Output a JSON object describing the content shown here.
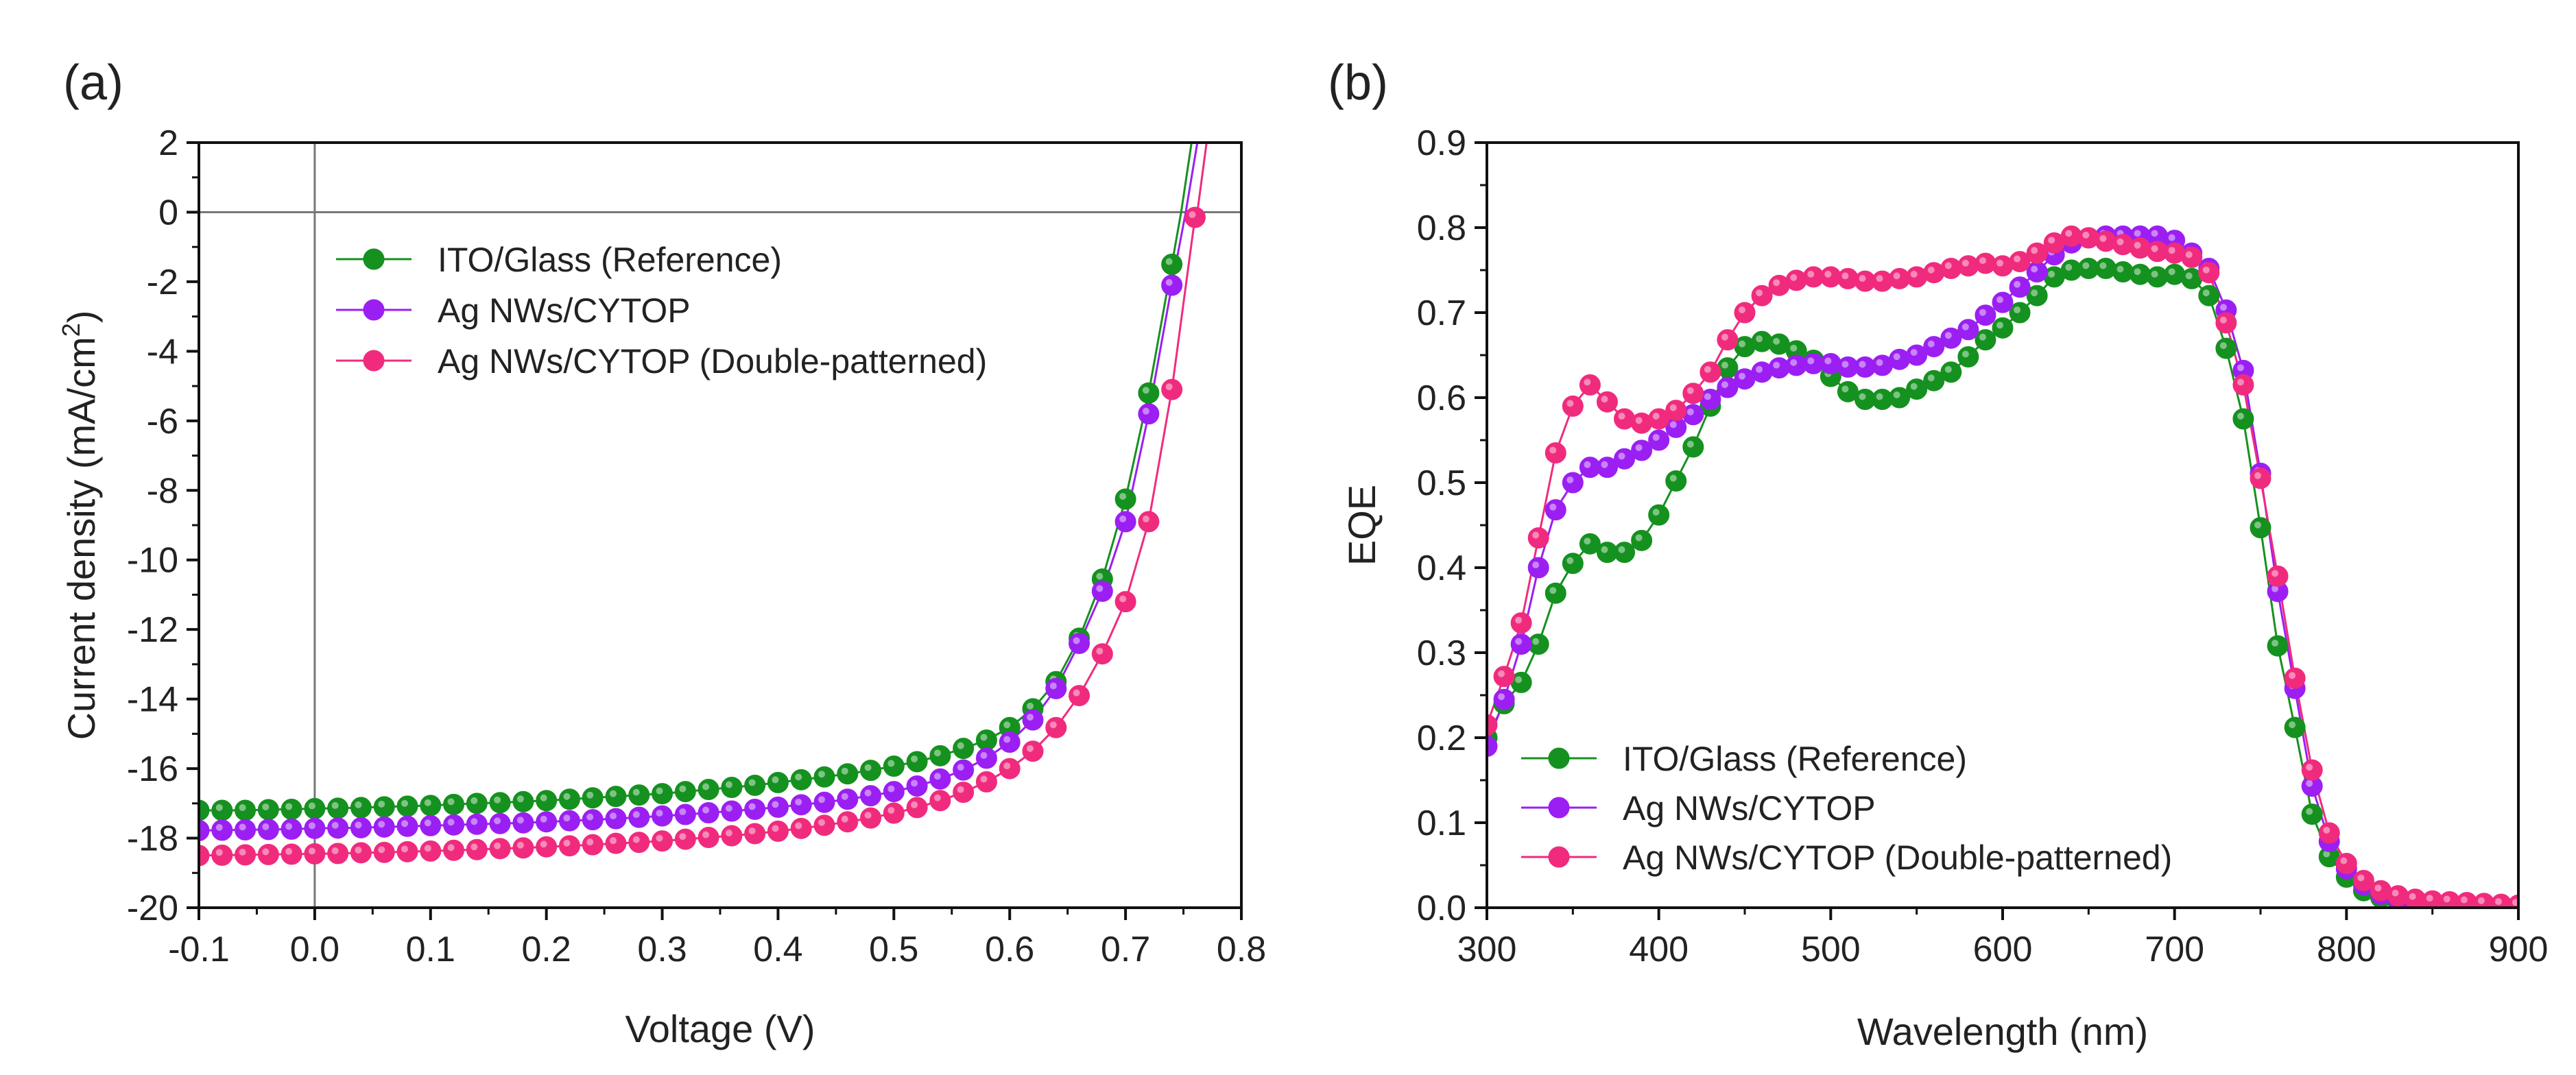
{
  "colors": {
    "reference": "#15911f",
    "agnws": "#9b1ff2",
    "double": "#f02b7d"
  },
  "chart_data": [
    {
      "type": "line",
      "panel_label": "(a)",
      "xlabel": "Voltage (V)",
      "ylabel_main": "Current density (mA/cm",
      "ylabel_sup": "2",
      "ylabel_end": ")",
      "xlim": [
        -0.1,
        0.8
      ],
      "ylim": [
        -20,
        2
      ],
      "xticks": [
        "-0.1",
        "0.0",
        "0.1",
        "0.2",
        "0.3",
        "0.4",
        "0.5",
        "0.6",
        "0.7",
        "0.8"
      ],
      "yticks": [
        "2",
        "0",
        "-2",
        "-4",
        "-6",
        "-8",
        "-10",
        "-12",
        "-14",
        "-16",
        "-18",
        "-20"
      ],
      "legend": [
        "ITO/Glass (Reference)",
        "Ag NWs/CYTOP",
        "Ag NWs/CYTOP (Double-patterned)"
      ],
      "series": [
        {
          "name": "ITO/Glass (Reference)",
          "color": "#15911f",
          "x": [
            -0.1,
            -0.08,
            -0.06,
            -0.04,
            -0.02,
            0.0,
            0.02,
            0.04,
            0.06,
            0.08,
            0.1,
            0.12,
            0.14,
            0.16,
            0.18,
            0.2,
            0.22,
            0.24,
            0.26,
            0.28,
            0.3,
            0.32,
            0.34,
            0.36,
            0.38,
            0.4,
            0.42,
            0.44,
            0.46,
            0.48,
            0.5,
            0.52,
            0.54,
            0.56,
            0.58,
            0.6,
            0.62,
            0.64,
            0.66,
            0.68,
            0.7,
            0.72,
            0.74
          ],
          "y": [
            -17.2,
            -17.2,
            -17.2,
            -17.18,
            -17.17,
            -17.15,
            -17.14,
            -17.12,
            -17.1,
            -17.08,
            -17.06,
            -17.03,
            -17.0,
            -16.98,
            -16.95,
            -16.92,
            -16.88,
            -16.84,
            -16.8,
            -16.76,
            -16.72,
            -16.66,
            -16.6,
            -16.54,
            -16.48,
            -16.4,
            -16.32,
            -16.24,
            -16.15,
            -16.05,
            -15.93,
            -15.8,
            -15.63,
            -15.42,
            -15.18,
            -14.82,
            -14.28,
            -13.5,
            -12.25,
            -10.55,
            -8.25,
            -5.2,
            -1.5
          ],
          "fit_x": [
            0.748,
            0.757
          ],
          "fit_y": [
            0.0,
            2.0
          ]
        },
        {
          "name": "Ag NWs/CYTOP",
          "color": "#9b1ff2",
          "x": [
            -0.1,
            -0.08,
            -0.06,
            -0.04,
            -0.02,
            0.0,
            0.02,
            0.04,
            0.06,
            0.08,
            0.1,
            0.12,
            0.14,
            0.16,
            0.18,
            0.2,
            0.22,
            0.24,
            0.26,
            0.28,
            0.3,
            0.32,
            0.34,
            0.36,
            0.38,
            0.4,
            0.42,
            0.44,
            0.46,
            0.48,
            0.5,
            0.52,
            0.54,
            0.56,
            0.58,
            0.6,
            0.62,
            0.64,
            0.66,
            0.68,
            0.7,
            0.72,
            0.74
          ],
          "y": [
            -17.78,
            -17.77,
            -17.76,
            -17.75,
            -17.74,
            -17.72,
            -17.71,
            -17.7,
            -17.68,
            -17.66,
            -17.64,
            -17.62,
            -17.6,
            -17.58,
            -17.56,
            -17.53,
            -17.5,
            -17.47,
            -17.44,
            -17.4,
            -17.36,
            -17.32,
            -17.27,
            -17.22,
            -17.17,
            -17.11,
            -17.04,
            -16.97,
            -16.88,
            -16.78,
            -16.66,
            -16.5,
            -16.3,
            -16.04,
            -15.7,
            -15.24,
            -14.6,
            -13.7,
            -12.4,
            -10.9,
            -8.9,
            -5.8,
            -2.1
          ],
          "fit_x": [
            0.752,
            0.762
          ],
          "fit_y": [
            0.0,
            2.0
          ]
        },
        {
          "name": "Ag NWs/CYTOP (Double-patterned)",
          "color": "#f02b7d",
          "x": [
            -0.1,
            -0.08,
            -0.06,
            -0.04,
            -0.02,
            0.0,
            0.02,
            0.04,
            0.06,
            0.08,
            0.1,
            0.12,
            0.14,
            0.16,
            0.18,
            0.2,
            0.22,
            0.24,
            0.26,
            0.28,
            0.3,
            0.32,
            0.34,
            0.36,
            0.38,
            0.4,
            0.42,
            0.44,
            0.46,
            0.48,
            0.5,
            0.52,
            0.54,
            0.56,
            0.58,
            0.6,
            0.62,
            0.64,
            0.66,
            0.68,
            0.7,
            0.72,
            0.74,
            0.76
          ],
          "y": [
            -18.5,
            -18.49,
            -18.48,
            -18.47,
            -18.46,
            -18.45,
            -18.44,
            -18.42,
            -18.41,
            -18.39,
            -18.37,
            -18.35,
            -18.33,
            -18.3,
            -18.28,
            -18.25,
            -18.22,
            -18.19,
            -18.15,
            -18.12,
            -18.08,
            -18.03,
            -17.98,
            -17.93,
            -17.87,
            -17.8,
            -17.72,
            -17.63,
            -17.53,
            -17.42,
            -17.28,
            -17.12,
            -16.92,
            -16.68,
            -16.38,
            -16.0,
            -15.5,
            -14.82,
            -13.9,
            -12.7,
            -11.2,
            -8.9,
            -5.1,
            -0.15
          ],
          "fit_x": [
            0.762,
            0.77
          ],
          "fit_y": [
            0.0,
            2.0
          ]
        }
      ]
    },
    {
      "type": "line",
      "panel_label": "(b)",
      "xlabel": "Wavelength (nm)",
      "ylabel": "EQE",
      "xlim": [
        300,
        900
      ],
      "ylim": [
        0.0,
        0.9
      ],
      "xticks": [
        "300",
        "400",
        "500",
        "600",
        "700",
        "800",
        "900"
      ],
      "yticks": [
        "0.9",
        "0.8",
        "0.7",
        "0.6",
        "0.5",
        "0.4",
        "0.3",
        "0.2",
        "0.1",
        "0.0"
      ],
      "legend": [
        "ITO/Glass (Reference)",
        "Ag NWs/CYTOP",
        "Ag NWs/CYTOP (Double-patterned)"
      ],
      "series": [
        {
          "name": "ITO/Glass (Reference)",
          "color": "#15911f",
          "x": [
            300,
            310,
            320,
            330,
            340,
            350,
            360,
            370,
            380,
            390,
            400,
            410,
            420,
            430,
            440,
            450,
            460,
            470,
            480,
            490,
            500,
            510,
            520,
            530,
            540,
            550,
            560,
            570,
            580,
            590,
            600,
            610,
            620,
            630,
            640,
            650,
            660,
            670,
            680,
            690,
            700,
            710,
            720,
            730,
            740,
            750,
            760,
            770,
            780,
            790,
            800,
            810,
            820,
            830,
            840,
            850,
            860,
            870,
            880,
            890,
            900
          ],
          "y": [
            0.2,
            0.24,
            0.265,
            0.31,
            0.37,
            0.405,
            0.428,
            0.418,
            0.418,
            0.432,
            0.462,
            0.502,
            0.542,
            0.59,
            0.635,
            0.66,
            0.666,
            0.663,
            0.655,
            0.644,
            0.625,
            0.607,
            0.598,
            0.598,
            0.6,
            0.61,
            0.62,
            0.63,
            0.648,
            0.668,
            0.682,
            0.7,
            0.72,
            0.742,
            0.75,
            0.752,
            0.752,
            0.748,
            0.745,
            0.742,
            0.745,
            0.74,
            0.72,
            0.658,
            0.575,
            0.447,
            0.308,
            0.212,
            0.11,
            0.06,
            0.036,
            0.02,
            0.012,
            0.007,
            0.004,
            0.003,
            0.002,
            0.002,
            0.001,
            0.001,
            0.001
          ]
        },
        {
          "name": "Ag NWs/CYTOP",
          "color": "#9b1ff2",
          "x": [
            300,
            310,
            320,
            330,
            340,
            350,
            360,
            370,
            380,
            390,
            400,
            410,
            420,
            430,
            440,
            450,
            460,
            470,
            480,
            490,
            500,
            510,
            520,
            530,
            540,
            550,
            560,
            570,
            580,
            590,
            600,
            610,
            620,
            630,
            640,
            650,
            660,
            670,
            680,
            690,
            700,
            710,
            720,
            730,
            740,
            750,
            760,
            770,
            780,
            790,
            800,
            810,
            820,
            830,
            840,
            850,
            860,
            870,
            880,
            890,
            900
          ],
          "y": [
            0.19,
            0.245,
            0.31,
            0.4,
            0.468,
            0.5,
            0.518,
            0.518,
            0.528,
            0.538,
            0.55,
            0.565,
            0.58,
            0.598,
            0.612,
            0.622,
            0.63,
            0.635,
            0.638,
            0.64,
            0.64,
            0.636,
            0.636,
            0.638,
            0.645,
            0.65,
            0.66,
            0.67,
            0.68,
            0.697,
            0.712,
            0.73,
            0.748,
            0.768,
            0.782,
            0.788,
            0.79,
            0.79,
            0.79,
            0.79,
            0.785,
            0.77,
            0.752,
            0.703,
            0.632,
            0.511,
            0.372,
            0.258,
            0.143,
            0.078,
            0.046,
            0.027,
            0.016,
            0.01,
            0.006,
            0.004,
            0.003,
            0.002,
            0.002,
            0.001,
            0.001
          ]
        },
        {
          "name": "Ag NWs/CYTOP (Double-patterned)",
          "color": "#f02b7d",
          "x": [
            300,
            310,
            320,
            330,
            340,
            350,
            360,
            370,
            380,
            390,
            400,
            410,
            420,
            430,
            440,
            450,
            460,
            470,
            480,
            490,
            500,
            510,
            520,
            530,
            540,
            550,
            560,
            570,
            580,
            590,
            600,
            610,
            620,
            630,
            640,
            650,
            660,
            670,
            680,
            690,
            700,
            710,
            720,
            730,
            740,
            750,
            760,
            770,
            780,
            790,
            800,
            810,
            820,
            830,
            840,
            850,
            860,
            870,
            880,
            890,
            900
          ],
          "y": [
            0.215,
            0.272,
            0.335,
            0.435,
            0.535,
            0.59,
            0.615,
            0.595,
            0.575,
            0.57,
            0.575,
            0.585,
            0.605,
            0.63,
            0.668,
            0.7,
            0.72,
            0.732,
            0.738,
            0.742,
            0.742,
            0.74,
            0.737,
            0.737,
            0.74,
            0.742,
            0.747,
            0.752,
            0.755,
            0.758,
            0.755,
            0.76,
            0.77,
            0.782,
            0.79,
            0.788,
            0.784,
            0.78,
            0.776,
            0.772,
            0.77,
            0.765,
            0.747,
            0.688,
            0.615,
            0.505,
            0.39,
            0.27,
            0.162,
            0.088,
            0.052,
            0.032,
            0.02,
            0.014,
            0.01,
            0.008,
            0.007,
            0.006,
            0.005,
            0.004,
            0.003
          ]
        }
      ]
    }
  ]
}
